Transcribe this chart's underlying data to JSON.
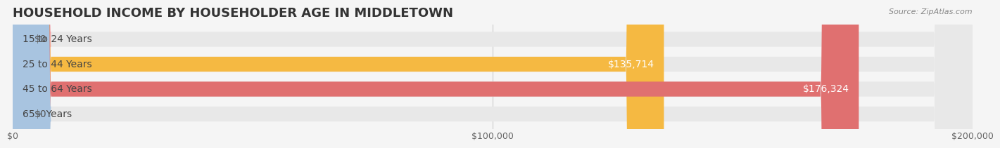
{
  "title": "HOUSEHOLD INCOME BY HOUSEHOLDER AGE IN MIDDLETOWN",
  "source": "Source: ZipAtlas.com",
  "categories": [
    "15 to 24 Years",
    "25 to 44 Years",
    "45 to 64 Years",
    "65+ Years"
  ],
  "values": [
    0,
    135714,
    176324,
    0
  ],
  "bar_colors": [
    "#f4a0b0",
    "#f5b942",
    "#e07070",
    "#a8c4e0"
  ],
  "bg_color": "#f5f5f5",
  "bar_bg_color": "#e8e8e8",
  "xlim": [
    0,
    200000
  ],
  "xticks": [
    0,
    100000,
    200000
  ],
  "xtick_labels": [
    "$0",
    "$100,000",
    "$200,000"
  ],
  "bar_height": 0.6,
  "label_fontsize": 10,
  "title_fontsize": 13,
  "value_fontsize": 10
}
